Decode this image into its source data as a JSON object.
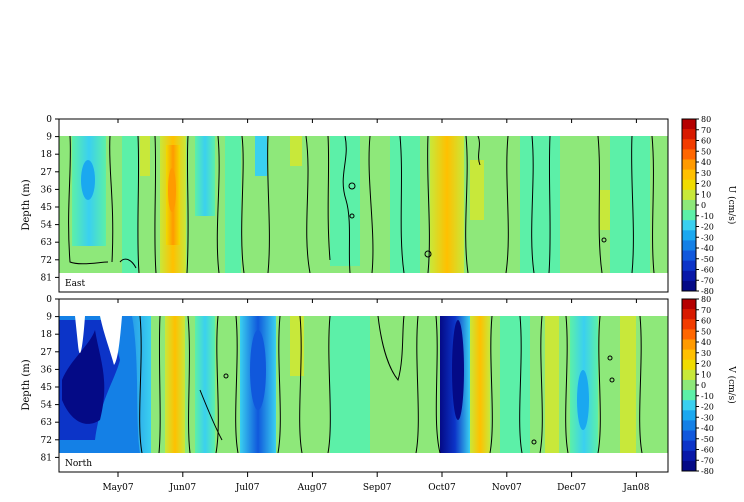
{
  "chart_data": [
    {
      "type": "heatmap",
      "panel_label": "East",
      "ylabel": "Depth (m)",
      "y_ticks": [
        "0",
        "9",
        "18",
        "27",
        "36",
        "45",
        "54",
        "63",
        "72",
        "81"
      ],
      "x_ticks": [
        "May07",
        "Jun07",
        "Jul07",
        "Aug07",
        "Sep07",
        "Oct07",
        "Nov07",
        "Dec07",
        "Jan08"
      ],
      "colorbar": {
        "label": "U (cm/s)",
        "ticks": [
          "80",
          "70",
          "60",
          "50",
          "40",
          "30",
          "20",
          "10",
          "0",
          "-10",
          "-20",
          "-30",
          "-40",
          "-50",
          "-60",
          "-70",
          "-80"
        ],
        "range": [
          -80,
          80
        ],
        "colors": [
          "#b50000",
          "#d81a00",
          "#f23c00",
          "#ff6600",
          "#ff9a00",
          "#ffc000",
          "#f0dc00",
          "#c8e83a",
          "#8ee87a",
          "#5cf0a8",
          "#3ad0f0",
          "#1aa8f0",
          "#1480e6",
          "#1058dc",
          "#0c34c8",
          "#0818a8",
          "#040a86"
        ]
      },
      "data_depth_range": [
        9,
        76
      ],
      "notable_features": [
        {
          "time": "late May 2007",
          "depth": "9-72 m",
          "value_range": [
            10,
            30
          ]
        },
        {
          "time": "early Oct 2007",
          "depth": "9-60 m",
          "value_range": [
            10,
            20
          ]
        },
        {
          "time": "Apr-May 2007",
          "depth": "20-60 m",
          "value_range": [
            -20,
            -10
          ]
        }
      ]
    },
    {
      "type": "heatmap",
      "panel_label": "North",
      "ylabel": "Depth (m)",
      "y_ticks": [
        "0",
        "9",
        "18",
        "27",
        "36",
        "45",
        "54",
        "63",
        "72",
        "81"
      ],
      "x_ticks": [
        "May07",
        "Jun07",
        "Jul07",
        "Aug07",
        "Sep07",
        "Oct07",
        "Nov07",
        "Dec07",
        "Jan08"
      ],
      "colorbar": {
        "label": "V (cm/s)",
        "ticks": [
          "80",
          "70",
          "60",
          "50",
          "40",
          "30",
          "20",
          "10",
          "0",
          "-10",
          "-20",
          "-30",
          "-40",
          "-50",
          "-60",
          "-70",
          "-80"
        ],
        "range": [
          -80,
          80
        ],
        "colors": [
          "#b50000",
          "#d81a00",
          "#f23c00",
          "#ff6600",
          "#ff9a00",
          "#ffc000",
          "#f0dc00",
          "#c8e83a",
          "#8ee87a",
          "#5cf0a8",
          "#3ad0f0",
          "#1aa8f0",
          "#1480e6",
          "#1058dc",
          "#0c34c8",
          "#0818a8",
          "#040a86"
        ]
      },
      "data_depth_range": [
        9,
        76
      ],
      "notable_features": [
        {
          "time": "Apr-May 2007",
          "depth": "9-72 m",
          "value_range": [
            -80,
            -40
          ]
        },
        {
          "time": "early Jul 2007",
          "depth": "9-72 m",
          "value_range": [
            -50,
            -20
          ]
        },
        {
          "time": "early Oct 2007",
          "depth": "9-72 m",
          "value_range": [
            -80,
            -40
          ]
        },
        {
          "time": "early Dec 2007",
          "depth": "9-72 m",
          "value_range": [
            -30,
            -10
          ]
        }
      ]
    }
  ]
}
